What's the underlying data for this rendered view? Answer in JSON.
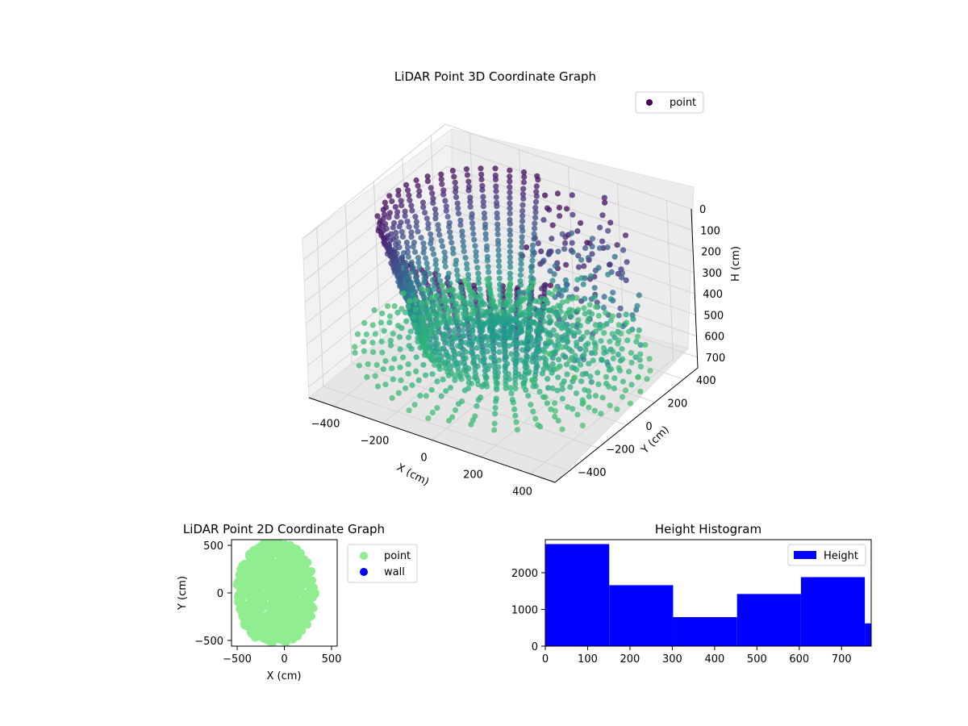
{
  "chart_data": [
    {
      "type": "scatter",
      "title": "LiDAR Point 3D Coordinate Graph",
      "xlabel": "X (cm)",
      "ylabel": "Y (cm)",
      "zlabel": "H (cm)",
      "xlim": [
        -500,
        500
      ],
      "ylim": [
        -500,
        500
      ],
      "zlim": [
        750,
        0
      ],
      "x_ticks": [
        "−400",
        "−200",
        "0",
        "200",
        "400"
      ],
      "y_ticks": [
        "−400",
        "−200",
        "0",
        "200",
        "400"
      ],
      "z_ticks": [
        "0",
        "100",
        "200",
        "300",
        "400",
        "500",
        "600",
        "700"
      ],
      "colormap": "viridis",
      "grid": true,
      "legend_position": "top-right",
      "series": [
        {
          "name": "point",
          "color": "#440154"
        }
      ]
    },
    {
      "type": "scatter",
      "title": "LiDAR Point 2D Coordinate Graph",
      "xlabel": "X (cm)",
      "ylabel": "Y (cm)",
      "xlim": [
        -560,
        560
      ],
      "ylim": [
        -560,
        560
      ],
      "x_ticks": [
        "−500",
        "0",
        "500"
      ],
      "y_ticks": [
        "500",
        "0",
        "−500"
      ],
      "legend_position": "outside-right",
      "series": [
        {
          "name": "point",
          "color": "#90ee90"
        },
        {
          "name": "wall",
          "color": "#0000ff"
        }
      ]
    },
    {
      "type": "bar",
      "title": "Height Histogram",
      "xlim": [
        0,
        770
      ],
      "ylim": [
        0,
        2900
      ],
      "x_ticks": [
        "0",
        "100",
        "200",
        "300",
        "400",
        "500",
        "600",
        "700"
      ],
      "y_ticks": [
        "0",
        "1000",
        "2000"
      ],
      "bin_edges": [
        0,
        151,
        302,
        453,
        604,
        755,
        906
      ],
      "values": [
        2780,
        1660,
        790,
        1420,
        1880,
        620
      ],
      "legend_position": "top-right",
      "series": [
        {
          "name": "Height",
          "color": "#0000ff"
        }
      ]
    }
  ]
}
